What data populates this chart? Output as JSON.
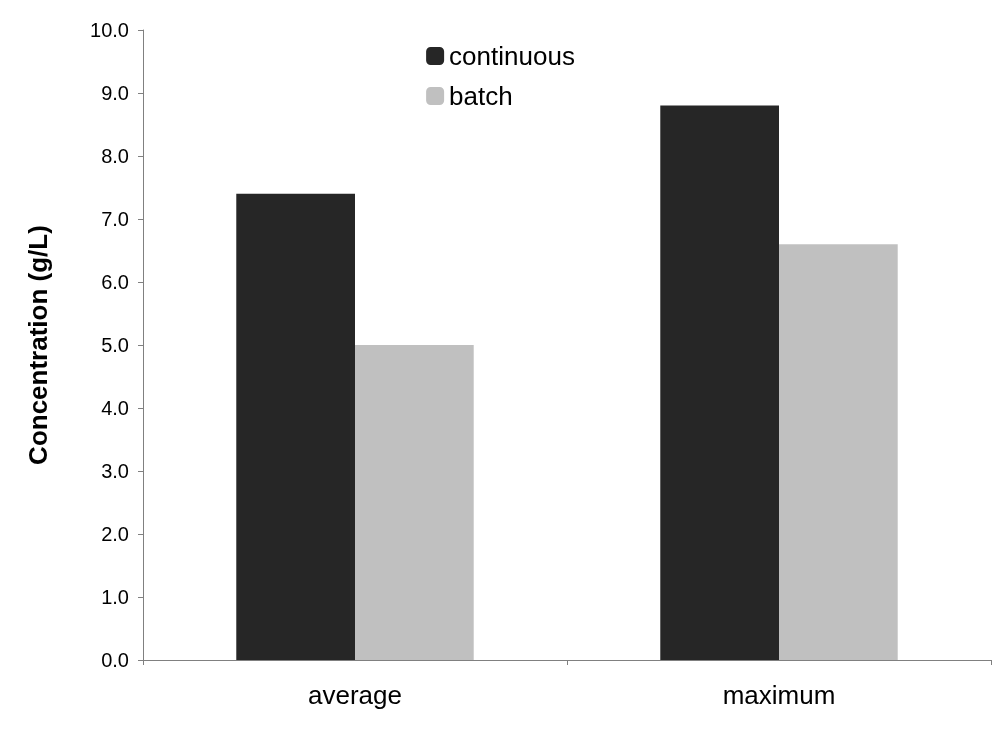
{
  "chart_data": {
    "type": "bar",
    "ylabel": "Concentration (g/L)",
    "categories": [
      "average",
      "maximum"
    ],
    "series": [
      {
        "name": "continuous",
        "color": "#262626",
        "values": [
          7.4,
          8.8
        ]
      },
      {
        "name": "batch",
        "color": "#c0c0c0",
        "values": [
          5.0,
          6.6
        ]
      }
    ],
    "ylim": [
      0,
      10
    ],
    "yticks": [
      {
        "value": 0,
        "label": "0.0"
      },
      {
        "value": 1,
        "label": "1.0"
      },
      {
        "value": 2,
        "label": "2.0"
      },
      {
        "value": 3,
        "label": "3.0"
      },
      {
        "value": 4,
        "label": "4.0"
      },
      {
        "value": 5,
        "label": "5.0"
      },
      {
        "value": 6,
        "label": "6.0"
      },
      {
        "value": 7,
        "label": "7.0"
      },
      {
        "value": 8,
        "label": "8.0"
      },
      {
        "value": 9,
        "label": "9.0"
      },
      {
        "value": 10,
        "label": "10.0"
      }
    ],
    "grid": false,
    "legend": "top"
  }
}
